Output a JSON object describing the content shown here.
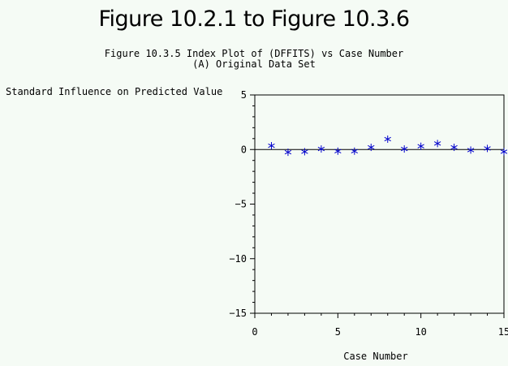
{
  "title": "Figure 10.2.1 to Figure 10.3.6",
  "subtitle_line1": "Figure 10.3.5 Index Plot of (DFFITS) vs Case Number",
  "subtitle_line2": "(A) Original Data Set",
  "colors": {
    "background": "#f5fbf5",
    "marker": "#0000cc",
    "axis": "#000000"
  },
  "chart_data": {
    "type": "scatter",
    "marker": "*",
    "ylabel": "Standard Influence on Predicted Value",
    "xlabel": "Case Number",
    "xlim": [
      0,
      15
    ],
    "ylim": [
      -15,
      5
    ],
    "x_ticks_major": [
      0,
      5,
      10,
      15
    ],
    "y_ticks_major": [
      5,
      0,
      -5,
      -10,
      -15
    ],
    "reference_line_y": 0,
    "x": [
      1,
      2,
      3,
      4,
      5,
      6,
      7,
      8,
      9,
      10,
      11,
      12,
      13,
      14,
      15
    ],
    "y": [
      0.35,
      -0.25,
      -0.2,
      0.05,
      -0.15,
      -0.15,
      0.2,
      0.95,
      0.05,
      0.3,
      0.55,
      0.2,
      -0.05,
      0.1,
      -0.2
    ]
  }
}
